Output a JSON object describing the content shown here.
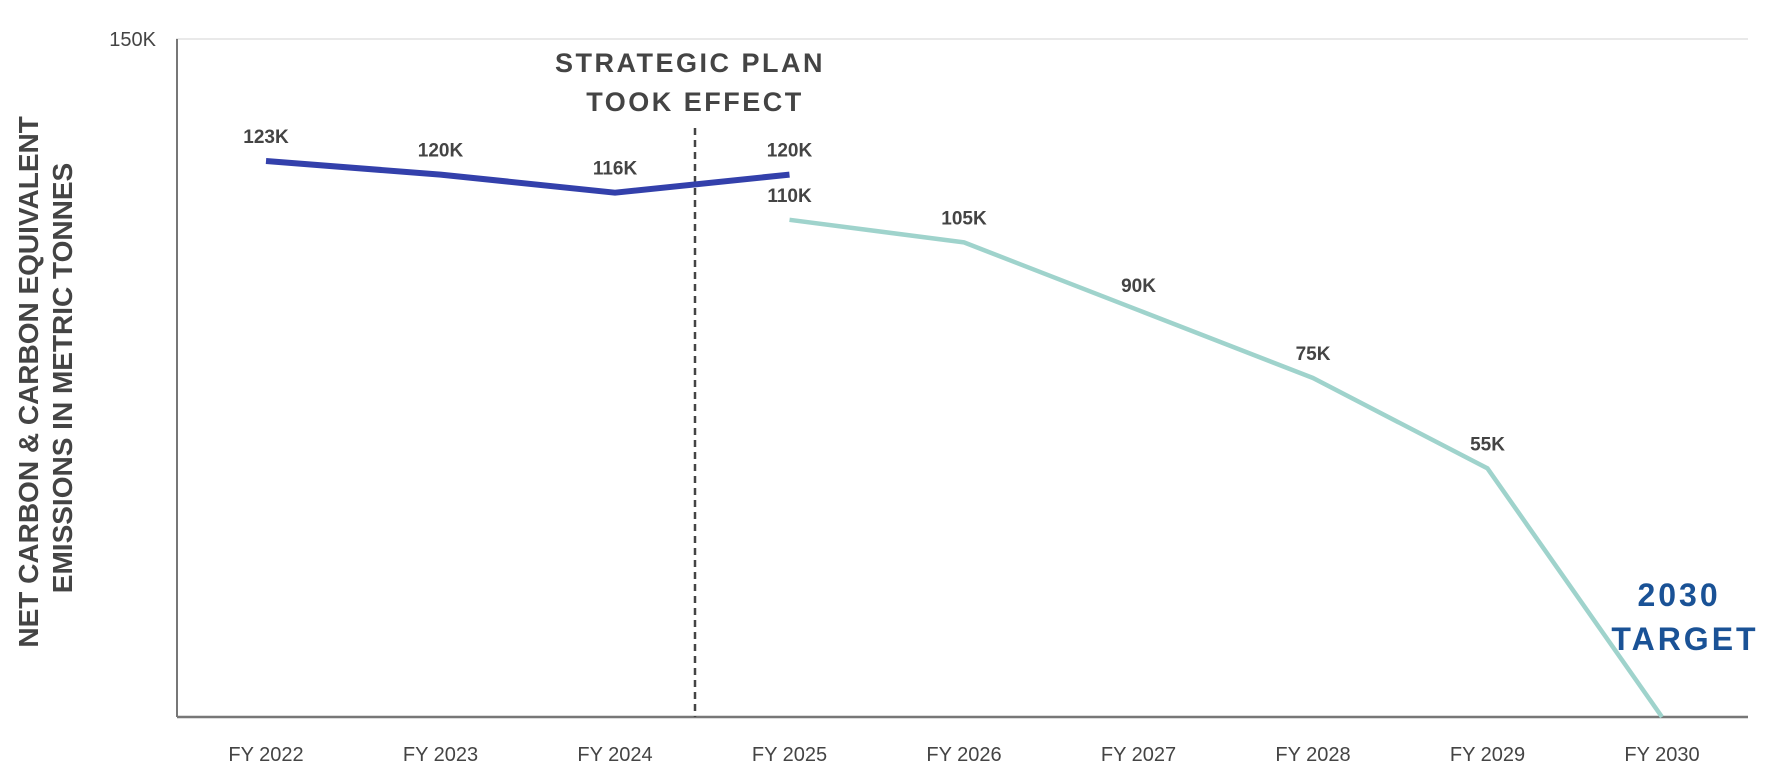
{
  "chart_data": {
    "type": "line",
    "categories": [
      "FY 2022",
      "FY 2023",
      "FY 2024",
      "FY 2025",
      "FY 2026",
      "FY 2027",
      "FY 2028",
      "FY 2029",
      "FY 2030"
    ],
    "ylabel": [
      "NET CARBON & CARBON EQUIVALENT",
      "EMISSIONS IN METRIC TONNES"
    ],
    "ylim": [
      0,
      150000
    ],
    "y_ticks": [
      {
        "value": 150000,
        "label": "150K"
      }
    ],
    "series": [
      {
        "color": "#3340ab",
        "points": [
          {
            "x": "FY 2022",
            "y": 123000,
            "label": "123K"
          },
          {
            "x": "FY 2023",
            "y": 120000,
            "label": "120K"
          },
          {
            "x": "FY 2024",
            "y": 116000,
            "label": "116K"
          },
          {
            "x": "FY 2025",
            "y": 120000,
            "label": "120K"
          }
        ]
      },
      {
        "color": "#9fd3cc",
        "points": [
          {
            "x": "FY 2025",
            "y": 110000,
            "label": "110K"
          },
          {
            "x": "FY 2026",
            "y": 105000,
            "label": "105K"
          },
          {
            "x": "FY 2027",
            "y": 90000,
            "label": "90K"
          },
          {
            "x": "FY 2028",
            "y": 75000,
            "label": "75K"
          },
          {
            "x": "FY 2029",
            "y": 55000,
            "label": "55K"
          },
          {
            "x": "FY 2030",
            "y": 0,
            "label": ""
          }
        ]
      }
    ],
    "annotations": {
      "strategic_plan": {
        "lines": [
          "STRATEGIC PLAN",
          "TOOK EFFECT"
        ],
        "between": [
          "FY 2024",
          "FY 2025"
        ]
      },
      "target": {
        "lines": [
          "2030",
          "TARGET"
        ],
        "color": "#1a5296"
      }
    },
    "grid": false
  }
}
